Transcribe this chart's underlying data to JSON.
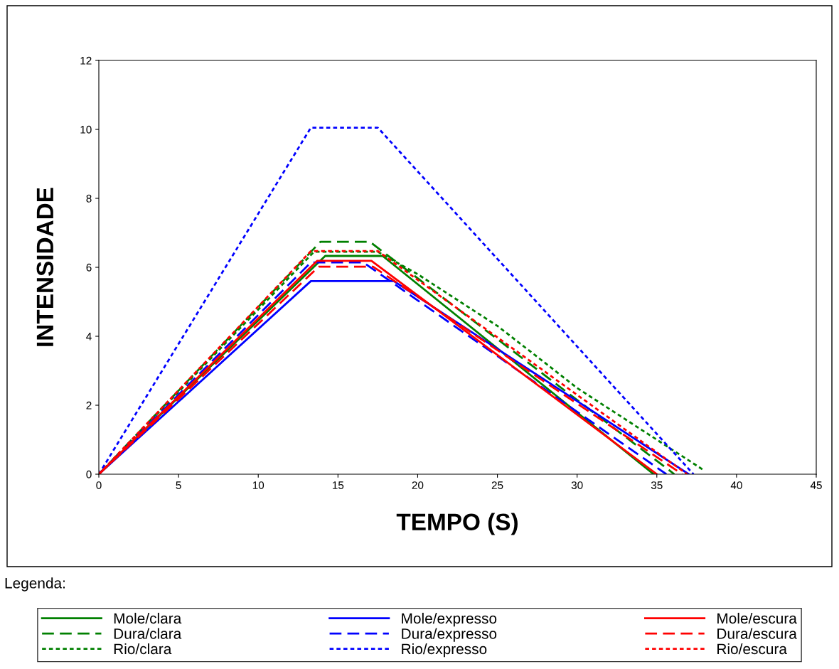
{
  "chart_data": {
    "type": "line",
    "xlabel": "TEMPO (S)",
    "ylabel": "INTENSIDADE",
    "xlim": [
      0,
      45
    ],
    "xticks": [
      0,
      5,
      10,
      15,
      20,
      25,
      30,
      35,
      40,
      45
    ],
    "ylim": [
      0,
      12
    ],
    "yticks": [
      0,
      2,
      4,
      6,
      8,
      10,
      12
    ],
    "grid": false,
    "legend": "bottom",
    "legend_title": "Legenda:",
    "marker": "none",
    "series": [
      {
        "name": "Mole/clara",
        "color": "#008000",
        "line_style": "solid",
        "x": [
          0,
          14.2,
          17.8,
          34.8
        ],
        "values": [
          0,
          6.33,
          6.33,
          0
        ]
      },
      {
        "name": "Dura/clara",
        "color": "#008000",
        "line_style": "dashed",
        "x": [
          0,
          13.9,
          17.0,
          36.1
        ],
        "values": [
          0,
          6.74,
          6.74,
          0
        ]
      },
      {
        "name": "Rio/clara",
        "color": "#008000",
        "line_style": "dotted",
        "x": [
          0,
          13.5,
          17.5,
          20,
          22,
          25,
          27.4,
          30,
          33,
          35,
          38
        ],
        "values": [
          0,
          6.45,
          6.45,
          5.8,
          5.2,
          4.3,
          3.44,
          2.5,
          1.6,
          1.0,
          0.1
        ]
      },
      {
        "name": "Mole/expresso",
        "color": "#0000ff",
        "line_style": "solid",
        "x": [
          0,
          13.3,
          18.5,
          37.0
        ],
        "values": [
          0,
          5.6,
          5.6,
          0
        ]
      },
      {
        "name": "Dura/expresso",
        "color": "#0000ff",
        "line_style": "dashed",
        "x": [
          0,
          13.3,
          16.6,
          35.6
        ],
        "values": [
          0,
          6.14,
          6.14,
          0
        ]
      },
      {
        "name": "Rio/expresso",
        "color": "#0000ff",
        "line_style": "dotted",
        "x": [
          0,
          13.3,
          17.5,
          37.3
        ],
        "values": [
          0,
          10.05,
          10.05,
          0
        ]
      },
      {
        "name": "Mole/escura",
        "color": "#ff0000",
        "line_style": "solid",
        "x": [
          0,
          13.7,
          17.1,
          35.0
        ],
        "values": [
          0,
          6.19,
          6.19,
          0
        ]
      },
      {
        "name": "Dura/escura",
        "color": "#ff0000",
        "line_style": "dashed",
        "x": [
          0,
          13.8,
          17.2,
          36.6
        ],
        "values": [
          0,
          6.02,
          6.02,
          0
        ]
      },
      {
        "name": "Rio/escura",
        "color": "#ff0000",
        "line_style": "dotted",
        "x": [
          0,
          13.3,
          17.5,
          36.9
        ],
        "values": [
          0,
          6.47,
          6.47,
          0
        ]
      }
    ]
  }
}
